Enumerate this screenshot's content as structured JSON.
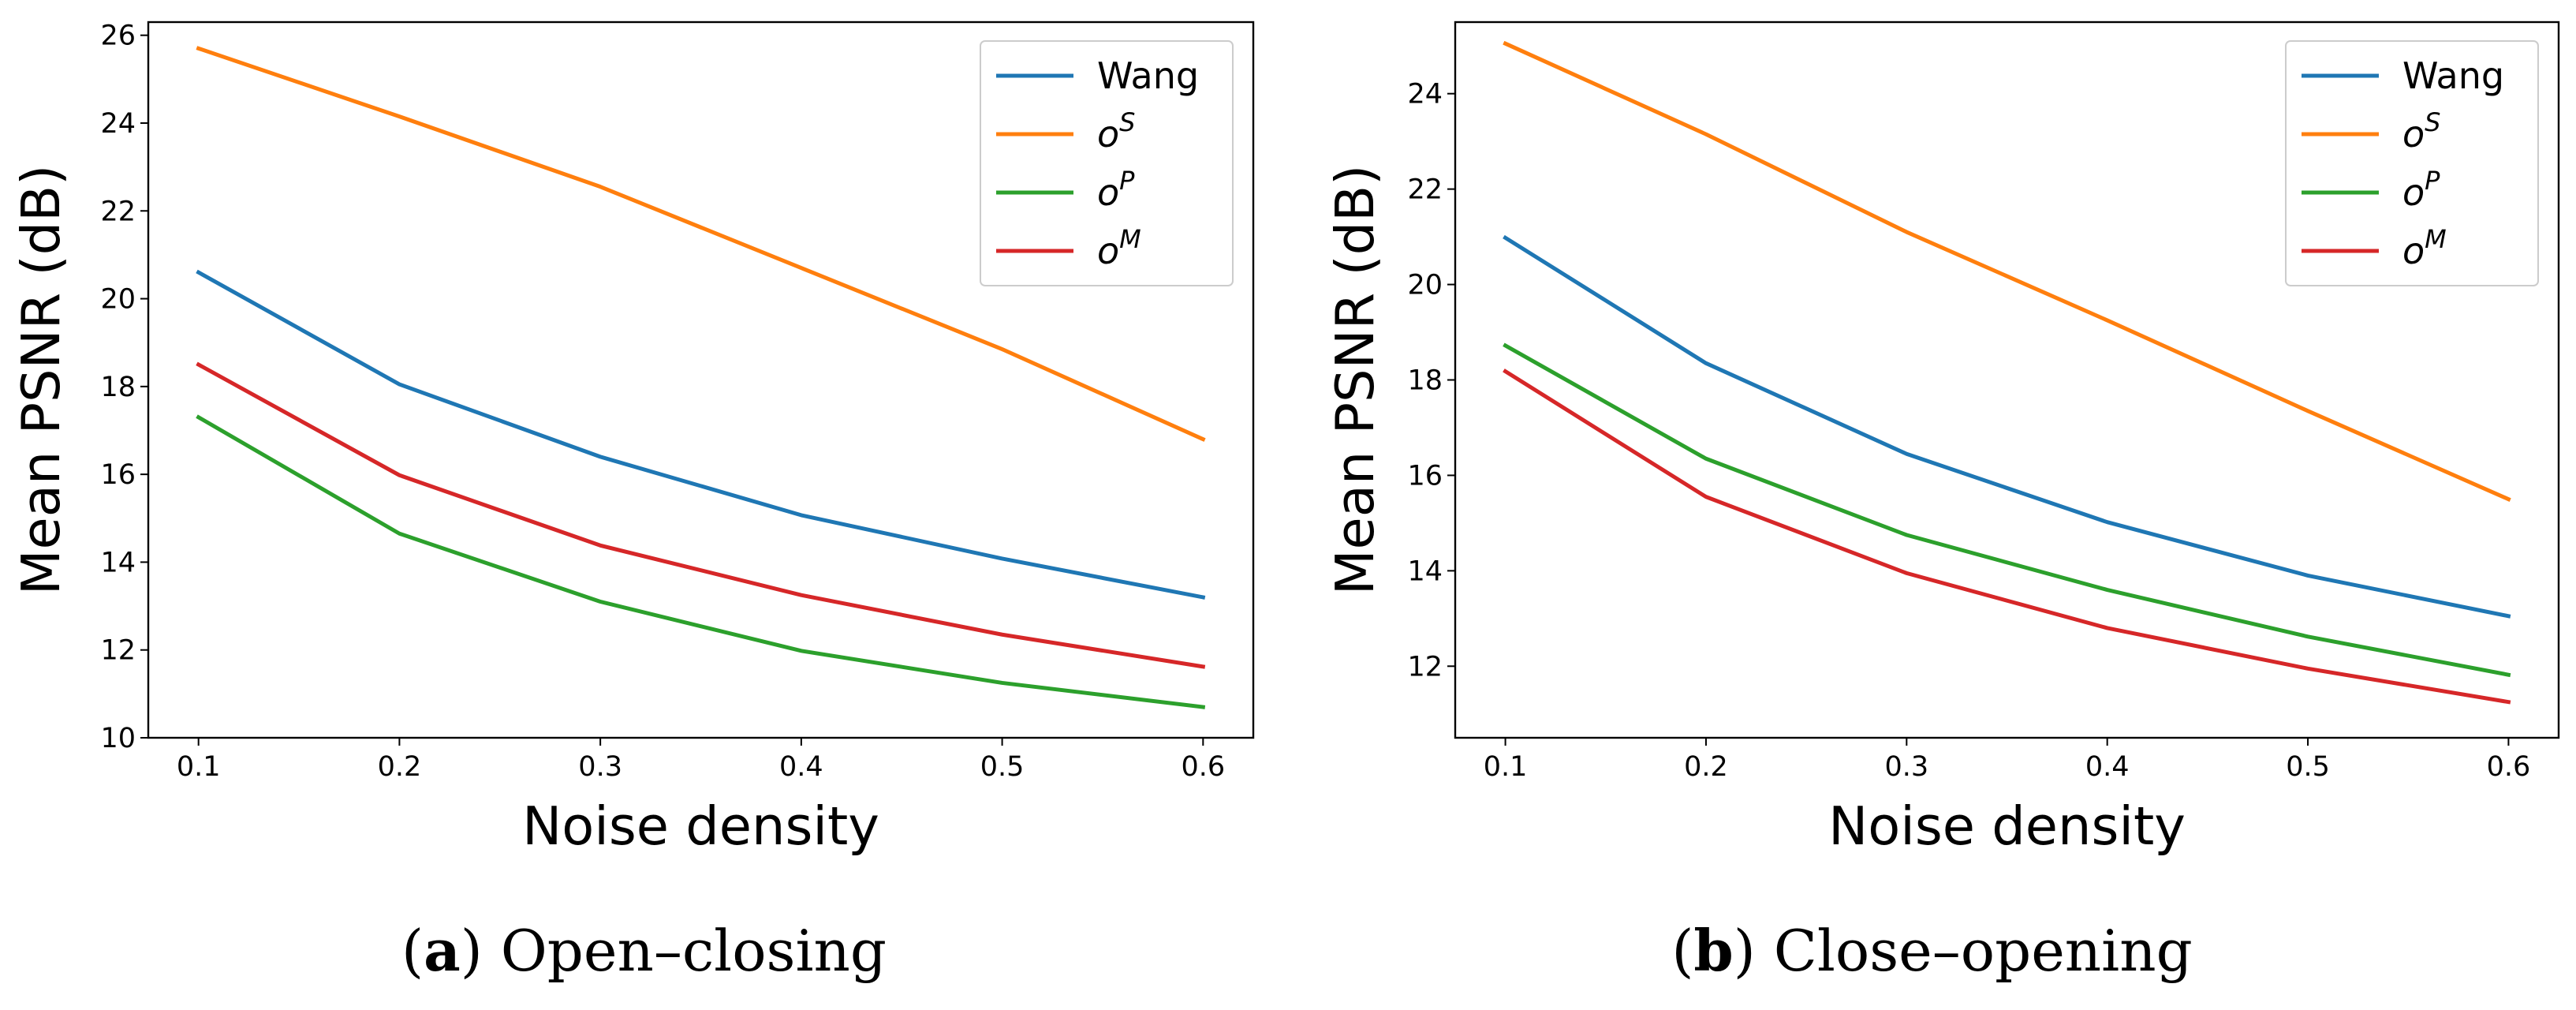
{
  "chart_data": [
    {
      "type": "line",
      "caption_letter": "a",
      "caption_text": "Open–closing",
      "xlabel": "Noise density",
      "ylabel": "Mean PSNR (dB)",
      "x": [
        0.1,
        0.2,
        0.3,
        0.4,
        0.5,
        0.6
      ],
      "xlim": [
        0.075,
        0.625
      ],
      "ylim": [
        10,
        26.3
      ],
      "xticks": [
        0.1,
        0.2,
        0.3,
        0.4,
        0.5,
        0.6
      ],
      "yticks": [
        10,
        12,
        14,
        16,
        18,
        20,
        22,
        24,
        26
      ],
      "grid": false,
      "legend_position": "top-right",
      "series": [
        {
          "name": "Wang",
          "label_base": "Wang",
          "label_sup": "",
          "color": "#1f77b4",
          "values": [
            20.6,
            18.05,
            16.4,
            15.07,
            14.08,
            13.2
          ]
        },
        {
          "name": "oS",
          "label_base": "o",
          "label_sup": "S",
          "color": "#ff7f0e",
          "values": [
            25.7,
            24.15,
            22.55,
            20.7,
            18.85,
            16.8
          ]
        },
        {
          "name": "oP",
          "label_base": "o",
          "label_sup": "P",
          "color": "#2ca02c",
          "values": [
            17.3,
            14.65,
            13.1,
            11.98,
            11.25,
            10.7
          ]
        },
        {
          "name": "oM",
          "label_base": "o",
          "label_sup": "M",
          "color": "#d62728",
          "values": [
            18.5,
            15.98,
            14.38,
            13.25,
            12.35,
            11.62
          ]
        }
      ]
    },
    {
      "type": "line",
      "caption_letter": "b",
      "caption_text": "Close–opening",
      "xlabel": "Noise density",
      "ylabel": "Mean PSNR (dB)",
      "x": [
        0.1,
        0.2,
        0.3,
        0.4,
        0.5,
        0.6
      ],
      "xlim": [
        0.075,
        0.625
      ],
      "ylim": [
        10.5,
        25.5
      ],
      "xticks": [
        0.1,
        0.2,
        0.3,
        0.4,
        0.5,
        0.6
      ],
      "yticks": [
        12,
        14,
        16,
        18,
        20,
        22,
        24
      ],
      "grid": false,
      "legend_position": "top-right",
      "series": [
        {
          "name": "Wang",
          "label_base": "Wang",
          "label_sup": "",
          "color": "#1f77b4",
          "values": [
            20.98,
            18.35,
            16.45,
            15.02,
            13.9,
            13.05
          ]
        },
        {
          "name": "oS",
          "label_base": "o",
          "label_sup": "S",
          "color": "#ff7f0e",
          "values": [
            25.05,
            23.15,
            21.1,
            19.25,
            17.35,
            15.5
          ]
        },
        {
          "name": "oP",
          "label_base": "o",
          "label_sup": "P",
          "color": "#2ca02c",
          "values": [
            18.72,
            16.35,
            14.75,
            13.6,
            12.62,
            11.82
          ]
        },
        {
          "name": "oM",
          "label_base": "o",
          "label_sup": "M",
          "color": "#d62728",
          "values": [
            18.18,
            15.55,
            13.95,
            12.8,
            11.95,
            11.25
          ]
        }
      ]
    }
  ]
}
